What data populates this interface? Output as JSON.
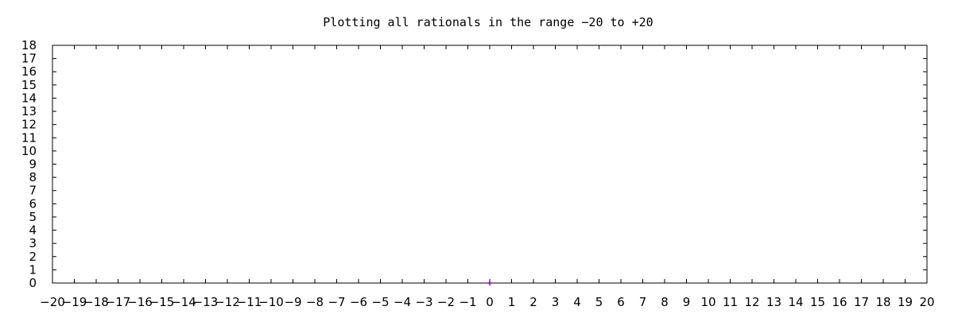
{
  "chart_data": {
    "type": "scatter",
    "title": "Plotting all rationals in the range −20 to +20",
    "xlabel": "",
    "ylabel": "",
    "xlim": [
      -20,
      20
    ],
    "ylim": [
      0,
      18
    ],
    "x_ticks": [
      "−20",
      "−19",
      "−18",
      "−17",
      "−16",
      "−15",
      "−14",
      "−13",
      "−12",
      "−11",
      "−10",
      "−9",
      "−8",
      "−7",
      "−6",
      "−5",
      "−4",
      "−3",
      "−2",
      "−1",
      "0",
      "1",
      "2",
      "3",
      "4",
      "5",
      "6",
      "7",
      "8",
      "9",
      "10",
      "11",
      "12",
      "13",
      "14",
      "15",
      "16",
      "17",
      "18",
      "19",
      "20"
    ],
    "y_ticks": [
      "0",
      "1",
      "2",
      "3",
      "4",
      "5",
      "6",
      "7",
      "8",
      "9",
      "10",
      "11",
      "12",
      "13",
      "14",
      "15",
      "16",
      "17",
      "18"
    ],
    "grid": false,
    "series": [
      {
        "color": "#9400d3",
        "points": [
          {
            "x": 0,
            "y": 0
          }
        ]
      }
    ]
  }
}
